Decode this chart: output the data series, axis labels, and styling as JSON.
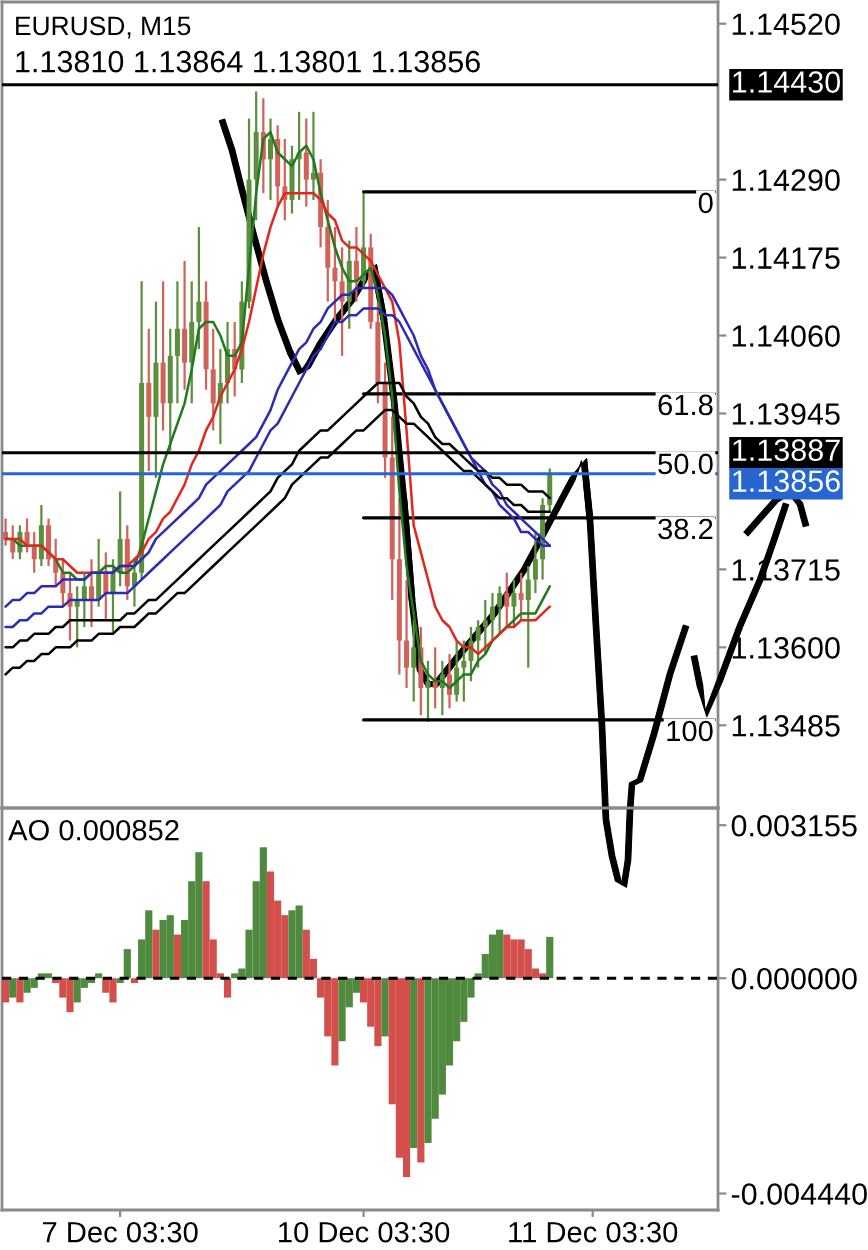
{
  "chart_data": [
    {
      "type": "candlestick",
      "title": "EURUSD, M15",
      "subtitle": "1.13810 1.13864 1.13801 1.13856",
      "categories": [
        null,
        null,
        null,
        null,
        null,
        null,
        null,
        null,
        null,
        null,
        null,
        null,
        null,
        null,
        null,
        null,
        null,
        null,
        null,
        null,
        null,
        null,
        null,
        null,
        null,
        null,
        null,
        null,
        null,
        null,
        null,
        null,
        null,
        null,
        null,
        null,
        null,
        null,
        null,
        null,
        null,
        null,
        null,
        null,
        null,
        null,
        null,
        null,
        null,
        null,
        null,
        null,
        null,
        null,
        null,
        null,
        null,
        null,
        null,
        null,
        null,
        null,
        null,
        null,
        null,
        null,
        null,
        null,
        null,
        null,
        null,
        null,
        null,
        null,
        null,
        null,
        null,
        null,
        null,
        null,
        null,
        null,
        null,
        null,
        null,
        null,
        null,
        null,
        null,
        null,
        null,
        null,
        null,
        null,
        null,
        null,
        null,
        null,
        null,
        null
      ],
      "ohlc": [
        [
          1.1377,
          1.1379,
          1.1375,
          1.1376
        ],
        [
          1.1376,
          1.1378,
          1.1373,
          1.1374
        ],
        [
          1.1374,
          1.1378,
          1.1373,
          1.1377
        ],
        [
          1.1377,
          1.1379,
          1.1374,
          1.1375
        ],
        [
          1.1375,
          1.1377,
          1.1371,
          1.1373
        ],
        [
          1.1373,
          1.1381,
          1.1372,
          1.1378
        ],
        [
          1.1378,
          1.1379,
          1.1372,
          1.1373
        ],
        [
          1.1373,
          1.1376,
          1.1369,
          1.1371
        ],
        [
          1.1371,
          1.1373,
          1.1366,
          1.1368
        ],
        [
          1.1368,
          1.1371,
          1.1361,
          1.1366
        ],
        [
          1.1366,
          1.1369,
          1.136,
          1.1367
        ],
        [
          1.1367,
          1.1371,
          1.1363,
          1.1369
        ],
        [
          1.1369,
          1.1373,
          1.1363,
          1.1367
        ],
        [
          1.1367,
          1.1376,
          1.1366,
          1.1371
        ],
        [
          1.1371,
          1.1374,
          1.1364,
          1.1368
        ],
        [
          1.1368,
          1.1373,
          1.1362,
          1.1371
        ],
        [
          1.1371,
          1.1383,
          1.1369,
          1.1376
        ],
        [
          1.1376,
          1.1378,
          1.1367,
          1.1369
        ],
        [
          1.1369,
          1.1373,
          1.1366,
          1.1371
        ],
        [
          1.1371,
          1.1414,
          1.137,
          1.1399
        ],
        [
          1.1399,
          1.1407,
          1.1386,
          1.1394
        ],
        [
          1.1394,
          1.1411,
          1.1385,
          1.1402
        ],
        [
          1.1402,
          1.1414,
          1.1392,
          1.1396
        ],
        [
          1.1396,
          1.1407,
          1.1389,
          1.1403
        ],
        [
          1.1403,
          1.1414,
          1.1396,
          1.1407
        ],
        [
          1.1407,
          1.1417,
          1.1398,
          1.1402
        ],
        [
          1.1402,
          1.1414,
          1.1396,
          1.1408
        ],
        [
          1.1408,
          1.1422,
          1.1404,
          1.1411
        ],
        [
          1.1411,
          1.1414,
          1.1398,
          1.1401
        ],
        [
          1.1401,
          1.1407,
          1.1392,
          1.1396
        ],
        [
          1.1396,
          1.1404,
          1.139,
          1.1399
        ],
        [
          1.1399,
          1.1408,
          1.1396,
          1.1404
        ],
        [
          1.1404,
          1.1408,
          1.1397,
          1.1401
        ],
        [
          1.1401,
          1.1414,
          1.1399,
          1.1411
        ],
        [
          1.1411,
          1.1438,
          1.141,
          1.1429
        ],
        [
          1.1429,
          1.1442,
          1.1423,
          1.1436
        ],
        [
          1.1436,
          1.1441,
          1.1427,
          1.1432
        ],
        [
          1.1432,
          1.1438,
          1.1426,
          1.1435
        ],
        [
          1.1435,
          1.1437,
          1.1425,
          1.1428
        ],
        [
          1.1428,
          1.1435,
          1.1423,
          1.1426
        ],
        [
          1.1426,
          1.1434,
          1.1424,
          1.1432
        ],
        [
          1.1432,
          1.1439,
          1.1426,
          1.1433
        ],
        [
          1.1433,
          1.1438,
          1.1425,
          1.1429
        ],
        [
          1.1429,
          1.1439,
          1.1426,
          1.143
        ],
        [
          1.143,
          1.1432,
          1.1419,
          1.1422
        ],
        [
          1.1422,
          1.1426,
          1.1411,
          1.1416
        ],
        [
          1.1416,
          1.1422,
          1.1408,
          1.1414
        ],
        [
          1.1414,
          1.1419,
          1.1403,
          1.1411
        ],
        [
          1.1411,
          1.142,
          1.1407,
          1.1417
        ],
        [
          1.1417,
          1.1422,
          1.1411,
          1.1414
        ],
        [
          1.1414,
          1.1427,
          1.1413,
          1.1419
        ],
        [
          1.1419,
          1.1421,
          1.1407,
          1.1408
        ],
        [
          1.1408,
          1.1411,
          1.1396,
          1.1399
        ],
        [
          1.1399,
          1.1402,
          1.1385,
          1.1388
        ],
        [
          1.1388,
          1.1394,
          1.1367,
          1.1373
        ],
        [
          1.1373,
          1.1382,
          1.1356,
          1.1361
        ],
        [
          1.1361,
          1.137,
          1.1354,
          1.1357
        ],
        [
          1.1357,
          1.1364,
          1.1352,
          1.136
        ],
        [
          1.136,
          1.1363,
          1.135,
          1.1354
        ],
        [
          1.1354,
          1.1358,
          1.1349,
          1.1355
        ],
        [
          1.1355,
          1.136,
          1.1351,
          1.1354
        ],
        [
          1.1354,
          1.1358,
          1.135,
          1.1356
        ],
        [
          1.1356,
          1.1359,
          1.1351,
          1.1353
        ],
        [
          1.1353,
          1.1361,
          1.1352,
          1.1357
        ],
        [
          1.1357,
          1.1361,
          1.1352,
          1.1358
        ],
        [
          1.1358,
          1.1363,
          1.1355,
          1.1361
        ],
        [
          1.1361,
          1.1364,
          1.1357,
          1.1363
        ],
        [
          1.1363,
          1.1367,
          1.1359,
          1.1364
        ],
        [
          1.1364,
          1.1368,
          1.1361,
          1.1366
        ],
        [
          1.1366,
          1.1369,
          1.1362,
          1.1368
        ],
        [
          1.1368,
          1.1371,
          1.1363,
          1.1366
        ],
        [
          1.1366,
          1.137,
          1.1363,
          1.1368
        ],
        [
          1.1368,
          1.1371,
          1.1364,
          1.1367
        ],
        [
          1.1367,
          1.1372,
          1.1357,
          1.137
        ],
        [
          1.137,
          1.1377,
          1.1368,
          1.1373
        ],
        [
          1.1373,
          1.1382,
          1.137,
          1.1381
        ],
        [
          1.1381,
          1.13864,
          1.13801,
          1.13856
        ],
        null,
        null,
        null,
        null,
        null,
        null,
        null,
        null,
        null,
        null,
        null,
        null,
        null,
        null,
        null,
        null,
        null,
        null,
        null,
        null,
        null,
        null,
        null
      ],
      "colors": [
        "#d1625a",
        "#d1625a",
        "#5b8f3b",
        "#d1625a",
        "#d1625a",
        "#5b8f3b",
        "#d1625a",
        "#d1625a",
        "#d1625a",
        "#d1625a",
        "#5b8f3b",
        "#5b8f3b",
        "#d1625a",
        "#5b8f3b",
        "#d1625a",
        "#5b8f3b",
        "#5b8f3b",
        "#d1625a",
        "#5b8f3b",
        "#5b8f3b",
        "#d1625a",
        "#5b8f3b",
        "#d1625a",
        "#5b8f3b",
        "#5b8f3b",
        "#d1625a",
        "#5b8f3b",
        "#5b8f3b",
        "#d1625a",
        "#d1625a",
        "#5b8f3b",
        "#5b8f3b",
        "#d1625a",
        "#5b8f3b",
        "#5b8f3b",
        "#5b8f3b",
        "#d1625a",
        "#5b8f3b",
        "#d1625a",
        "#d1625a",
        "#5b8f3b",
        "#5b8f3b",
        "#d1625a",
        "#5b8f3b",
        "#d1625a",
        "#d1625a",
        "#d1625a",
        "#d1625a",
        "#5b8f3b",
        "#d1625a",
        "#5b8f3b",
        "#d1625a",
        "#d1625a",
        "#d1625a",
        "#d1625a",
        "#d1625a",
        "#d1625a",
        "#5b8f3b",
        "#d1625a",
        "#5b8f3b",
        "#d1625a",
        "#5b8f3b",
        "#d1625a",
        "#5b8f3b",
        "#5b8f3b",
        "#5b8f3b",
        "#5b8f3b",
        "#5b8f3b",
        "#5b8f3b",
        "#5b8f3b",
        "#d1625a",
        "#5b8f3b",
        "#d1625a",
        "#5b8f3b",
        "#5b8f3b",
        "#5b8f3b",
        "#5b8f3b",
        null,
        null,
        null,
        null,
        null,
        null,
        null,
        null,
        null,
        null,
        null,
        null,
        null,
        null,
        null,
        null,
        null,
        null,
        null,
        null,
        null,
        null,
        null
      ],
      "series": [
        {
          "type": "line",
          "color": "#1e7b1e",
          "values": [
            1.1376,
            1.1376,
            1.1375,
            1.1375,
            1.1375,
            1.1375,
            1.1374,
            1.1373,
            1.1371,
            1.1371,
            1.137,
            1.137,
            1.1371,
            1.1371,
            1.1372,
            1.1372,
            1.1371,
            1.1371,
            1.1372,
            1.1375,
            1.1379,
            1.1383,
            1.1387,
            1.139,
            1.1393,
            1.1396,
            1.1401,
            1.1407,
            1.1408,
            1.1408,
            1.1406,
            1.1403,
            1.1403,
            1.1405,
            1.1416,
            1.1427,
            1.1435,
            1.1436,
            1.1433,
            1.1432,
            1.1431,
            1.1433,
            1.1434,
            1.1432,
            1.1427,
            1.1423,
            1.1419,
            1.1416,
            1.1414,
            1.1414,
            1.1415,
            1.1416,
            1.1412,
            1.1406,
            1.1397,
            1.1383,
            1.1372,
            1.1365,
            1.1358,
            1.1356,
            1.1355,
            1.1355,
            1.1354,
            1.1355,
            1.1356,
            1.1356,
            1.1358,
            1.1359,
            1.1361,
            1.1362,
            1.1363,
            1.1364,
            1.1365,
            1.1365,
            1.1365,
            1.1367,
            1.1369,
            null,
            null,
            null,
            null,
            null,
            null,
            null,
            null,
            null,
            null,
            null,
            null,
            null,
            null,
            null,
            null,
            null,
            null,
            null,
            null,
            null,
            null,
            null
          ]
        },
        {
          "type": "line",
          "color": "#e3261f",
          "values": [
            1.1376,
            1.1376,
            1.1376,
            1.1375,
            1.1375,
            1.1375,
            1.1374,
            1.1373,
            1.1373,
            1.1372,
            1.1371,
            1.1371,
            1.1371,
            1.1371,
            1.1371,
            1.1371,
            1.1372,
            1.1372,
            1.1373,
            1.1374,
            1.1376,
            1.1377,
            1.1379,
            1.138,
            1.1382,
            1.1384,
            1.1387,
            1.1389,
            1.1392,
            1.1394,
            1.1397,
            1.1399,
            1.1401,
            1.1404,
            1.1408,
            1.1413,
            1.1418,
            1.1422,
            1.1425,
            1.1427,
            1.1427,
            1.1427,
            1.1427,
            1.1427,
            1.1426,
            1.1424,
            1.1423,
            1.142,
            1.1419,
            1.1419,
            1.1418,
            1.1417,
            1.1415,
            1.1413,
            1.1411,
            1.1405,
            1.1392,
            1.1378,
            1.1374,
            1.137,
            1.1366,
            1.1364,
            1.1363,
            1.1361,
            1.136,
            1.136,
            1.1359,
            1.136,
            1.1361,
            1.1362,
            1.1363,
            1.1363,
            1.1364,
            1.1364,
            1.1364,
            1.1365,
            1.1366,
            null,
            null,
            null,
            null,
            null,
            null,
            null,
            null,
            null,
            null,
            null,
            null,
            null,
            null,
            null,
            null,
            null,
            null,
            null,
            null,
            null,
            null,
            null
          ]
        },
        {
          "type": "line",
          "color": "#2b2bb5",
          "values": [
            1.1366,
            1.1367,
            1.1367,
            1.1368,
            1.1368,
            1.1369,
            1.1369,
            1.1369,
            1.137,
            1.137,
            1.137,
            1.137,
            1.1371,
            1.1371,
            1.1371,
            1.1371,
            1.1372,
            1.1372,
            1.1372,
            1.1373,
            1.1374,
            1.1376,
            1.1377,
            1.1378,
            1.1379,
            1.138,
            1.1381,
            1.1382,
            1.1384,
            1.1385,
            1.1386,
            1.1387,
            1.1388,
            1.1389,
            1.139,
            1.1391,
            1.1393,
            1.1395,
            1.1398,
            1.14,
            1.1402,
            1.1404,
            1.1405,
            1.1407,
            1.1408,
            1.141,
            1.1411,
            1.1412,
            1.1412,
            1.1413,
            1.1413,
            1.1413,
            1.1413,
            1.1413,
            1.1412,
            1.141,
            1.1408,
            1.1406,
            1.1403,
            1.1401,
            1.1398,
            1.1396,
            1.1394,
            1.1392,
            1.139,
            1.1388,
            1.1387,
            1.1386,
            1.1384,
            1.1383,
            1.1381,
            1.138,
            1.1379,
            1.1378,
            1.1377,
            1.1376,
            1.1375,
            null,
            null,
            null,
            null,
            null,
            null,
            null,
            null,
            null,
            null,
            null,
            null,
            null,
            null,
            null,
            null,
            null,
            null,
            null,
            null,
            null,
            null,
            null
          ]
        },
        {
          "type": "line",
          "color": "#2b2bb5",
          "values": [
            1.1363,
            1.1363,
            1.1364,
            1.1364,
            1.1365,
            1.1365,
            1.1366,
            1.1366,
            1.1366,
            1.1367,
            1.1367,
            1.1367,
            1.1367,
            1.1367,
            1.1368,
            1.1368,
            1.1368,
            1.1368,
            1.1369,
            1.137,
            1.1371,
            1.1372,
            1.1373,
            1.1374,
            1.1375,
            1.1376,
            1.1377,
            1.1378,
            1.1379,
            1.138,
            1.1381,
            1.1383,
            1.1384,
            1.1385,
            1.1386,
            1.1388,
            1.139,
            1.1392,
            1.1393,
            1.1395,
            1.1397,
            1.1399,
            1.1401,
            1.1403,
            1.1404,
            1.1406,
            1.1408,
            1.1408,
            1.1409,
            1.1409,
            1.141,
            1.141,
            1.141,
            1.1409,
            1.1409,
            1.1408,
            1.1406,
            1.1404,
            1.1402,
            1.14,
            1.1398,
            1.1396,
            1.1394,
            1.1392,
            1.139,
            1.1388,
            1.1386,
            1.1384,
            1.1383,
            1.1381,
            1.138,
            1.1379,
            1.1377,
            1.1377,
            1.1376,
            1.1375,
            1.1375,
            null,
            null,
            null,
            null,
            null,
            null,
            null,
            null,
            null,
            null,
            null,
            null,
            null,
            null,
            null,
            null,
            null,
            null,
            null,
            null,
            null,
            null,
            null
          ]
        },
        {
          "type": "line",
          "color": "#000000",
          "values": [
            1.136,
            1.136,
            1.1361,
            1.1361,
            1.1362,
            1.1362,
            1.1362,
            1.1363,
            1.1363,
            1.1364,
            1.1364,
            1.1364,
            1.1364,
            1.1364,
            1.1364,
            1.1364,
            1.1364,
            1.1365,
            1.1365,
            1.1366,
            1.1367,
            1.1367,
            1.1368,
            1.1369,
            1.137,
            1.1371,
            1.1372,
            1.1373,
            1.1374,
            1.1375,
            1.1376,
            1.1377,
            1.1378,
            1.1379,
            1.138,
            1.1381,
            1.1382,
            1.1383,
            1.1385,
            1.1386,
            1.1387,
            1.1389,
            1.139,
            1.1391,
            1.1392,
            1.1392,
            1.1393,
            1.1394,
            1.1395,
            1.1396,
            1.1397,
            1.1398,
            1.1399,
            1.1399,
            1.1399,
            1.1399,
            1.1397,
            1.1396,
            1.1394,
            1.1393,
            1.1391,
            1.139,
            1.139,
            1.1389,
            1.1388,
            1.1387,
            1.1386,
            1.1386,
            1.1385,
            1.1385,
            1.1384,
            1.1384,
            1.1384,
            1.1383,
            1.1383,
            1.1383,
            1.1382,
            null,
            null,
            null,
            null,
            null,
            null,
            null,
            null,
            null,
            null,
            null,
            null,
            null,
            null,
            null,
            null,
            null,
            null,
            null,
            null,
            null,
            null,
            null
          ]
        },
        {
          "type": "line",
          "color": "#000000",
          "values": [
            1.1356,
            1.1357,
            1.1357,
            1.1358,
            1.1358,
            1.1359,
            1.1359,
            1.136,
            1.136,
            1.136,
            1.1361,
            1.1361,
            1.1361,
            1.1362,
            1.1362,
            1.1362,
            1.1363,
            1.1363,
            1.1363,
            1.1364,
            1.1365,
            1.1365,
            1.1366,
            1.1367,
            1.1368,
            1.1368,
            1.1369,
            1.137,
            1.1371,
            1.1372,
            1.1373,
            1.1374,
            1.1375,
            1.1376,
            1.1377,
            1.1378,
            1.1379,
            1.138,
            1.1381,
            1.1382,
            1.1384,
            1.1385,
            1.1386,
            1.1387,
            1.1388,
            1.1388,
            1.1389,
            1.139,
            1.1391,
            1.1392,
            1.1392,
            1.1393,
            1.1394,
            1.1395,
            1.1395,
            1.1394,
            1.1393,
            1.1393,
            1.1392,
            1.1391,
            1.139,
            1.1389,
            1.1388,
            1.1387,
            1.1386,
            1.1386,
            1.1385,
            1.1384,
            1.1383,
            1.1382,
            1.1382,
            1.1381,
            1.1381,
            1.138,
            1.138,
            1.138,
            1.138,
            null,
            null,
            null,
            null,
            null,
            null,
            null,
            null,
            null,
            null,
            null,
            null,
            null,
            null,
            null,
            null,
            null,
            null,
            null,
            null,
            null,
            null,
            null
          ]
        },
        {
          "type": "line",
          "color": "#000000",
          "values": [
            null,
            null,
            null,
            null,
            null,
            null,
            null,
            null,
            null,
            null,
            null,
            null,
            null,
            null,
            null,
            null,
            null,
            null,
            null,
            null,
            null,
            null,
            null,
            null,
            null,
            null,
            null,
            null,
            null,
            null,
            null,
            null,
            null,
            null,
            null,
            null,
            null,
            null,
            null,
            null,
            null,
            null,
            null,
            null,
            null,
            null,
            null,
            null,
            null,
            null,
            1.14272,
            1.14272,
            1.14272,
            1.14272,
            1.14272,
            1.14272,
            1.14272,
            1.14272,
            1.14272,
            1.14272,
            1.14272,
            1.14272,
            1.14272,
            1.14272,
            1.14272,
            1.14272,
            1.14272,
            1.14272,
            1.14272,
            1.14272,
            1.14272,
            1.14272,
            1.14272,
            1.14272,
            1.14272,
            1.14272,
            1.14272,
            1.14272,
            1.14272,
            1.14272,
            1.14272,
            1.14272,
            1.14272,
            1.14272,
            1.14272,
            1.14272,
            1.14272,
            1.14272,
            1.14272,
            1.14272,
            1.14272,
            1.14272,
            1.14272,
            1.14272,
            1.14272,
            1.14272,
            1.14272,
            1.14272,
            1.14272,
            1.14272
          ]
        },
        {
          "type": "line",
          "color": "#000000",
          "values": [
            null,
            null,
            null,
            null,
            null,
            null,
            null,
            null,
            null,
            null,
            null,
            null,
            null,
            null,
            null,
            null,
            null,
            null,
            null,
            null,
            null,
            null,
            null,
            null,
            null,
            null,
            null,
            null,
            null,
            null,
            null,
            null,
            null,
            null,
            null,
            null,
            null,
            null,
            null,
            null,
            null,
            null,
            null,
            null,
            null,
            null,
            null,
            null,
            null,
            null,
            1.13974,
            1.13974,
            1.13974,
            1.13974,
            1.13974,
            1.13974,
            1.13974,
            1.13974,
            1.13974,
            1.13974,
            1.13974,
            1.13974,
            1.13974,
            1.13974,
            1.13974,
            1.13974,
            1.13974,
            1.13974,
            1.13974,
            1.13974,
            1.13974,
            1.13974,
            1.13974,
            1.13974,
            1.13974,
            1.13974,
            1.13974,
            1.13974,
            1.13974,
            1.13974,
            1.13974,
            1.13974,
            1.13974,
            1.13974,
            1.13974,
            1.13974,
            1.13974,
            1.13974,
            1.13974,
            1.13974,
            1.13974,
            1.13974,
            1.13974,
            1.13974,
            1.13974,
            1.13974,
            1.13974,
            1.13974,
            1.13974,
            1.13974
          ]
        },
        {
          "type": "line",
          "color": "#000000",
          "values": [
            null,
            null,
            null,
            null,
            null,
            null,
            null,
            null,
            null,
            null,
            null,
            null,
            null,
            null,
            null,
            null,
            null,
            null,
            null,
            null,
            null,
            null,
            null,
            null,
            null,
            null,
            null,
            null,
            null,
            null,
            null,
            null,
            null,
            null,
            null,
            null,
            null,
            null,
            null,
            null,
            null,
            null,
            null,
            null,
            null,
            null,
            null,
            null,
            null,
            null,
            1.13791,
            1.13791,
            1.13791,
            1.13791,
            1.13791,
            1.13791,
            1.13791,
            1.13791,
            1.13791,
            1.13791,
            1.13791,
            1.13791,
            1.13791,
            1.13791,
            1.13791,
            1.13791,
            1.13791,
            1.13791,
            1.13791,
            1.13791,
            1.13791,
            1.13791,
            1.13791,
            1.13791,
            1.13791,
            1.13791,
            1.13791,
            1.13791,
            1.13791,
            1.13791,
            1.13791,
            1.13791,
            1.13791,
            1.13791,
            1.13791,
            1.13791,
            1.13791,
            1.13791,
            1.13791,
            1.13791,
            1.13791,
            1.13791,
            1.13791,
            1.13791,
            1.13791,
            1.13791,
            1.13791,
            1.13791,
            1.13791,
            1.13791
          ]
        },
        {
          "type": "line",
          "color": "#000000",
          "values": [
            null,
            null,
            null,
            null,
            null,
            null,
            null,
            null,
            null,
            null,
            null,
            null,
            null,
            null,
            null,
            null,
            null,
            null,
            null,
            null,
            null,
            null,
            null,
            null,
            null,
            null,
            null,
            null,
            null,
            null,
            null,
            null,
            null,
            null,
            null,
            null,
            null,
            null,
            null,
            null,
            null,
            null,
            null,
            null,
            null,
            null,
            null,
            null,
            null,
            null,
            1.13493,
            1.13493,
            1.13493,
            1.13493,
            1.13493,
            1.13493,
            1.13493,
            1.13493,
            1.13493,
            1.13493,
            1.13493,
            1.13493,
            1.13493,
            1.13493,
            1.13493,
            1.13493,
            1.13493,
            1.13493,
            1.13493,
            1.13493,
            1.13493,
            1.13493,
            1.13493,
            1.13493,
            1.13493,
            1.13493,
            1.13493,
            1.13493,
            1.13493,
            1.13493,
            1.13493,
            1.13493,
            1.13493,
            1.13493,
            1.13493,
            1.13493,
            1.13493,
            1.13493,
            1.13493,
            1.13493,
            1.13493,
            1.13493,
            1.13493,
            1.13493,
            1.13493,
            1.13493,
            1.13493,
            1.13493,
            1.13493,
            1.13493
          ]
        }
      ],
      "ylim": [
        1.13363,
        1.14552
      ],
      "yticks": [
        {
          "value": 1.1452,
          "label": "1.14520"
        },
        {
          "value": 1.1429,
          "label": "1.14290"
        },
        1.14175,
        {
          "value": 1.1406,
          "label": "1.14060"
        },
        1.13945,
        1.13715,
        {
          "value": 1.136,
          "label": "1.13600"
        },
        1.13485
      ],
      "ref_lines": [
        {
          "axis": "y",
          "value": 1.1443,
          "label": "1.14430",
          "color": "#000000"
        },
        {
          "axis": "y",
          "value": 1.13887,
          "label": "1.13887",
          "color": "#000000"
        },
        {
          "axis": "y",
          "value": 1.13856,
          "label": "1.13856",
          "color": "#2766d0"
        }
      ],
      "annotations": [
        {
          "text": "0",
          "y": 1.14272
        },
        {
          "text": "61.8",
          "y": 1.13974
        },
        {
          "text": "50.0",
          "y": 1.13887
        },
        {
          "text": "38.2",
          "y": 1.13791
        },
        {
          "text": "100",
          "y": 1.13493
        }
      ]
    },
    {
      "type": "bar",
      "title": "AO 0.000852",
      "categories": [
        null,
        null,
        null,
        null,
        null,
        null,
        null,
        null,
        null,
        null,
        null,
        null,
        null,
        null,
        null,
        null,
        "7 Dec 03:30",
        null,
        null,
        null,
        null,
        null,
        null,
        null,
        null,
        null,
        null,
        null,
        null,
        null,
        null,
        null,
        null,
        null,
        null,
        null,
        null,
        null,
        null,
        null,
        null,
        null,
        null,
        null,
        null,
        null,
        null,
        null,
        null,
        null,
        "10 Dec 03:30",
        null,
        null,
        null,
        null,
        null,
        null,
        null,
        null,
        null,
        null,
        null,
        null,
        null,
        null,
        null,
        null,
        null,
        null,
        null,
        null,
        null,
        null,
        null,
        null,
        null,
        null,
        null,
        null,
        null,
        null,
        null,
        "11 Dec 03:30",
        null,
        null,
        null,
        null,
        null,
        null,
        null,
        null,
        null,
        null,
        null,
        null,
        null,
        null,
        null,
        null,
        null
      ],
      "values": [
        -0.0005,
        -0.0004,
        -0.0005,
        -0.0003,
        -0.0002,
        0.0001,
        0.0001,
        -0.0001,
        -0.0004,
        -0.0007,
        -0.0005,
        -0.0002,
        -0.0001,
        0.0001,
        -0.0003,
        -0.0005,
        -0.0001,
        0.0006,
        -0.0001,
        0.0008,
        0.0014,
        0.001,
        0.0012,
        0.0013,
        0.0009,
        0.0012,
        0.002,
        0.0026,
        0.002,
        0.0008,
        0.0001,
        -0.0004,
        0.0001,
        0.0002,
        0.001,
        0.002,
        0.0027,
        0.0022,
        0.0016,
        0.0013,
        0.0014,
        0.0015,
        0.001,
        0.0004,
        -0.0004,
        -0.0012,
        -0.0018,
        -0.0013,
        -0.0006,
        -0.0003,
        -0.0005,
        -0.001,
        -0.0014,
        -0.0012,
        -0.0026,
        -0.0037,
        -0.0041,
        -0.0035,
        -0.0038,
        -0.0034,
        -0.0029,
        -0.0024,
        -0.0018,
        -0.0013,
        -0.0009,
        -0.0004,
        0.0001,
        0.0005,
        0.0009,
        0.001,
        0.0009,
        0.0008,
        0.0008,
        0.0006,
        0.0002,
        0.0001,
        0.000852,
        null,
        null,
        null,
        null,
        null,
        null,
        null,
        null,
        null,
        null,
        null,
        null,
        null,
        null,
        null,
        null,
        null,
        null,
        null,
        null,
        null,
        null,
        null
      ],
      "colors": [
        "#d24f4c",
        "#4f8a3f",
        "#d24f4c",
        "#4f8a3f",
        "#4f8a3f",
        "#4f8a3f",
        "#4f8a3f",
        "#d24f4c",
        "#d24f4c",
        "#d24f4c",
        "#4f8a3f",
        "#4f8a3f",
        "#4f8a3f",
        "#4f8a3f",
        "#d24f4c",
        "#d24f4c",
        "#4f8a3f",
        "#4f8a3f",
        "#d24f4c",
        "#4f8a3f",
        "#4f8a3f",
        "#d24f4c",
        "#4f8a3f",
        "#4f8a3f",
        "#d24f4c",
        "#4f8a3f",
        "#4f8a3f",
        "#4f8a3f",
        "#d24f4c",
        "#d24f4c",
        "#d24f4c",
        "#d24f4c",
        "#4f8a3f",
        "#4f8a3f",
        "#4f8a3f",
        "#4f8a3f",
        "#4f8a3f",
        "#d24f4c",
        "#d24f4c",
        "#d24f4c",
        "#4f8a3f",
        "#4f8a3f",
        "#d24f4c",
        "#d24f4c",
        "#d24f4c",
        "#d24f4c",
        "#d24f4c",
        "#4f8a3f",
        "#4f8a3f",
        "#4f8a3f",
        "#d24f4c",
        "#d24f4c",
        "#d24f4c",
        "#4f8a3f",
        "#d24f4c",
        "#d24f4c",
        "#d24f4c",
        "#4f8a3f",
        "#d24f4c",
        "#4f8a3f",
        "#4f8a3f",
        "#4f8a3f",
        "#4f8a3f",
        "#4f8a3f",
        "#4f8a3f",
        "#4f8a3f",
        "#4f8a3f",
        "#4f8a3f",
        "#4f8a3f",
        "#4f8a3f",
        "#d24f4c",
        "#d24f4c",
        "#d24f4c",
        "#d24f4c",
        "#d24f4c",
        "#d24f4c",
        "#4f8a3f",
        null,
        null,
        null,
        null,
        null,
        null,
        null,
        null,
        null,
        null,
        null,
        null,
        null,
        null,
        null,
        null,
        null,
        null,
        null,
        null,
        null,
        null,
        null
      ],
      "ylim": [
        -0.00478,
        0.00351
      ],
      "yticks": [
        0.003155,
        {
          "value": 0,
          "label": "0.000000"
        },
        {
          "value": -0.00444,
          "label": "-0.004440"
        }
      ],
      "ref_lines": [
        {
          "axis": "y",
          "value": 0,
          "color": "#000000",
          "line_style": "dashed"
        }
      ]
    }
  ]
}
